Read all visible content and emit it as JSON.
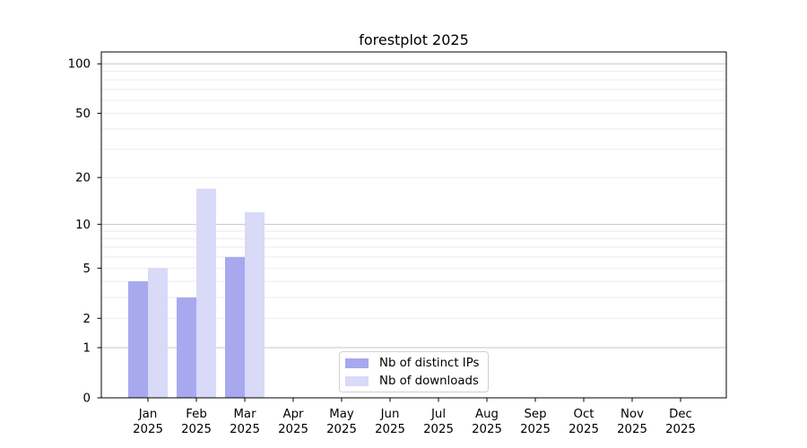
{
  "chart_data": {
    "type": "bar",
    "title": "forestplot 2025",
    "categories": [
      "Jan 2025",
      "Feb 2025",
      "Mar 2025",
      "Apr 2025",
      "May 2025",
      "Jun 2025",
      "Jul 2025",
      "Aug 2025",
      "Sep 2025",
      "Oct 2025",
      "Nov 2025",
      "Dec 2025"
    ],
    "series": [
      {
        "name": "Nb of distinct IPs",
        "color": "#a8a8ef",
        "values": [
          4,
          3,
          6,
          0,
          0,
          0,
          0,
          0,
          0,
          0,
          0,
          0
        ]
      },
      {
        "name": "Nb of downloads",
        "color": "#d9d9f8",
        "values": [
          5,
          17,
          12,
          0,
          0,
          0,
          0,
          0,
          0,
          0,
          0,
          0
        ]
      }
    ],
    "yscale": "log1p",
    "ylim": [
      0,
      118
    ],
    "y_labeled_ticks": [
      0,
      1,
      2,
      5,
      10,
      20,
      50,
      100
    ],
    "y_major_gridlines": [
      1,
      10,
      100
    ],
    "y_minor_gridlines": [
      2,
      3,
      4,
      5,
      6,
      7,
      8,
      9,
      20,
      30,
      40,
      50,
      60,
      70,
      80,
      90
    ],
    "grid": true,
    "legend_position": "lower center",
    "style": {
      "background": "#ffffff",
      "grid_major_color": "#c6c6c6",
      "grid_minor_color": "#ebebeb",
      "spine_color": "#000000",
      "tick_color": "#000000",
      "text_color": "#000000",
      "legend_border_color": "#d0d0d0"
    }
  }
}
